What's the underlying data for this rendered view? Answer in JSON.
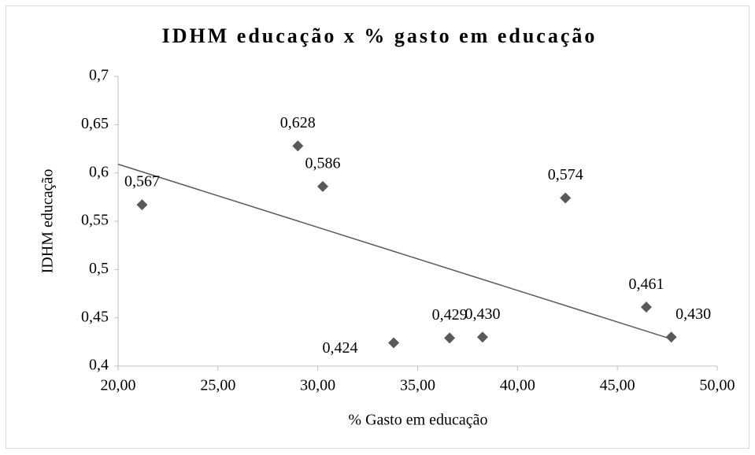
{
  "chart_data": {
    "type": "scatter",
    "title": "IDHM educação x % gasto em educação",
    "x_label": "% Gasto em educação",
    "y_label": "IDHM educação",
    "series": [
      {
        "name": "IDHM educação",
        "color": "#595959",
        "x": [
          21.2,
          29.0,
          30.25,
          33.8,
          36.6,
          38.25,
          42.4,
          46.45,
          47.7
        ],
        "values": [
          0.567,
          0.628,
          0.586,
          0.424,
          0.429,
          0.43,
          0.574,
          0.461,
          0.43
        ],
        "value_labels": [
          "0,567",
          "0,628",
          "0,586",
          "0,424",
          "0,429",
          "0,430",
          "0,574",
          "0,461",
          "0,430"
        ]
      }
    ],
    "trendline": {
      "color": "#595959",
      "x": [
        20,
        47.7
      ],
      "values": [
        0.609,
        0.428
      ]
    },
    "xlim": [
      20,
      50
    ],
    "ylim": [
      0.4,
      0.7
    ],
    "xticks": [
      {
        "value": 20,
        "label": "20,00"
      },
      {
        "value": 25,
        "label": "25,00"
      },
      {
        "value": 30,
        "label": "30,00"
      },
      {
        "value": 35,
        "label": "35,00"
      },
      {
        "value": 40,
        "label": "40,00"
      },
      {
        "value": 45,
        "label": "45,00"
      },
      {
        "value": 50,
        "label": "50,00"
      }
    ],
    "yticks": [
      {
        "value": 0.4,
        "label": "0,4"
      },
      {
        "value": 0.45,
        "label": "0,45"
      },
      {
        "value": 0.5,
        "label": "0,5"
      },
      {
        "value": 0.55,
        "label": "0,55"
      },
      {
        "value": 0.6,
        "label": "0,6"
      },
      {
        "value": 0.65,
        "label": "0,65"
      },
      {
        "value": 0.7,
        "label": "0,7"
      }
    ],
    "grid": false
  }
}
